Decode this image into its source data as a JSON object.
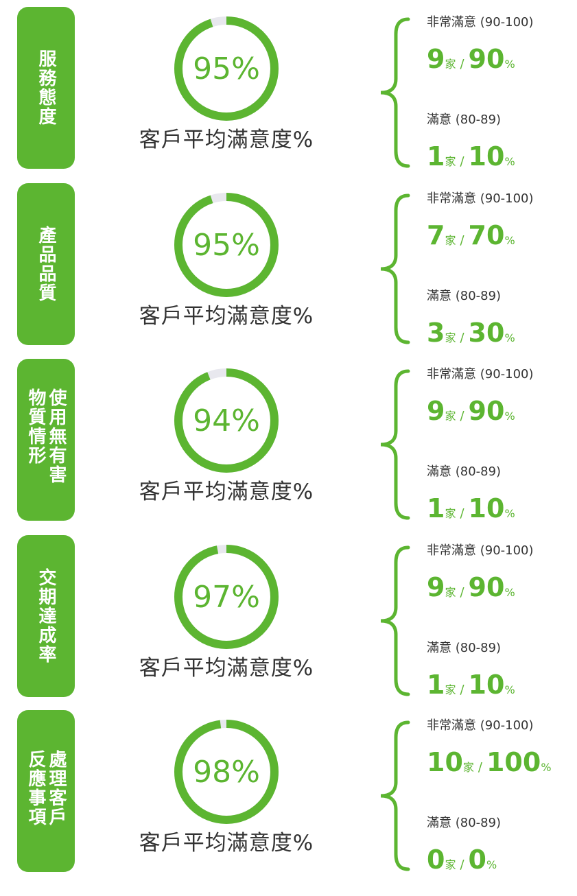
{
  "separator": "/",
  "count_unit": "家",
  "share_unit": "%",
  "rows": [
    {
      "category": "服務態度",
      "score": 95,
      "score_label": "95%",
      "caption": "客戶平均滿意度%",
      "groups": [
        {
          "name": "非常滿意 (90-100)",
          "count": 9,
          "share": 90
        },
        {
          "name": "滿意 (80-89)",
          "count": 1,
          "share": 10
        }
      ]
    },
    {
      "category": "產品品質",
      "score": 95,
      "score_label": "95%",
      "caption": "客戶平均滿意度%",
      "groups": [
        {
          "name": "非常滿意 (90-100)",
          "count": 7,
          "share": 70
        },
        {
          "name": "滿意 (80-89)",
          "count": 3,
          "share": 30
        }
      ]
    },
    {
      "category": "使用無有害物質情形",
      "score": 94,
      "score_label": "94%",
      "caption": "客戶平均滿意度%",
      "groups": [
        {
          "name": "非常滿意 (90-100)",
          "count": 9,
          "share": 90
        },
        {
          "name": "滿意 (80-89)",
          "count": 1,
          "share": 10
        }
      ]
    },
    {
      "category": "交期達成率",
      "score": 97,
      "score_label": "97%",
      "caption": "客戶平均滿意度%",
      "groups": [
        {
          "name": "非常滿意 (90-100)",
          "count": 9,
          "share": 90
        },
        {
          "name": "滿意 (80-89)",
          "count": 1,
          "share": 10
        }
      ]
    },
    {
      "category": "處理客戶反應事項",
      "score": 98,
      "score_label": "98%",
      "caption": "客戶平均滿意度%",
      "groups": [
        {
          "name": "非常滿意 (90-100)",
          "count": 10,
          "share": 100
        },
        {
          "name": "滿意 (80-89)",
          "count": 0,
          "share": 0
        }
      ]
    }
  ]
}
